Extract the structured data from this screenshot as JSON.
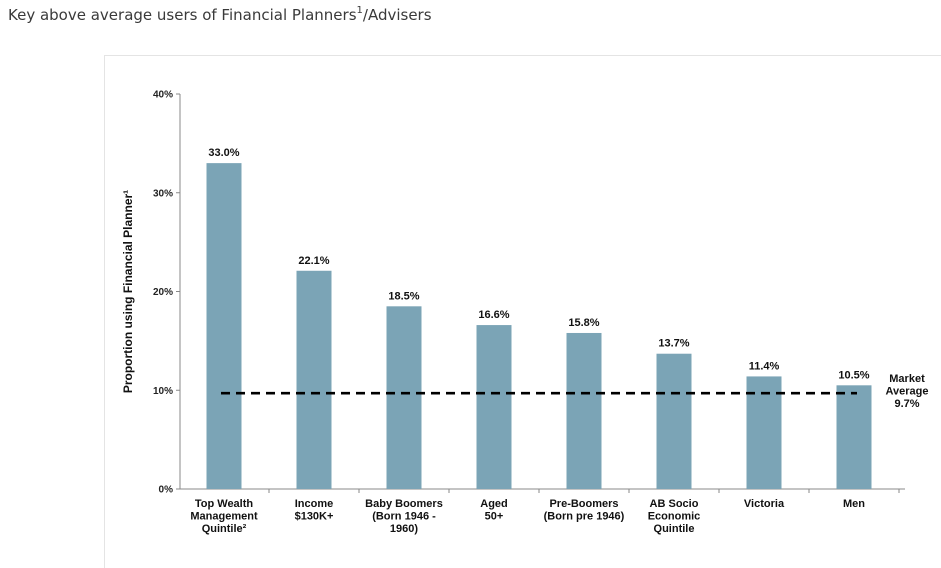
{
  "page": {
    "title_main": "Key above average users of Financial Planners",
    "title_sup": "1",
    "title_suffix": "/Advisers"
  },
  "chart_data": {
    "type": "bar",
    "title": "",
    "xlabel": "",
    "ylabel": "Proportion using Financial Planner¹",
    "ylim": [
      0,
      40
    ],
    "yticks": [
      0,
      10,
      20,
      30,
      40
    ],
    "ytick_labels": [
      "0%",
      "10%",
      "20%",
      "30%",
      "40%"
    ],
    "categories": [
      [
        "Top Wealth",
        "Management",
        "Quintile²"
      ],
      [
        "Income",
        "$130K+"
      ],
      [
        "Baby Boomers",
        "(Born 1946 -",
        "1960)"
      ],
      [
        "Aged",
        "50+"
      ],
      [
        "Pre-Boomers",
        "(Born pre 1946)"
      ],
      [
        "AB Socio",
        "Economic",
        "Quintile"
      ],
      [
        "Victoria"
      ],
      [
        "Men"
      ]
    ],
    "values": [
      33.0,
      22.1,
      18.5,
      16.6,
      15.8,
      13.7,
      11.4,
      10.5
    ],
    "value_labels": [
      "33.0%",
      "22.1%",
      "18.5%",
      "16.6%",
      "15.8%",
      "13.7%",
      "11.4%",
      "10.5%"
    ],
    "reference_line": {
      "value": 9.7,
      "label": [
        "Market",
        "Average",
        "9.7%"
      ],
      "style": "dashed"
    },
    "grid": false,
    "legend": "none",
    "bar_color": "#7ba4b6",
    "line_color": "#000000"
  }
}
